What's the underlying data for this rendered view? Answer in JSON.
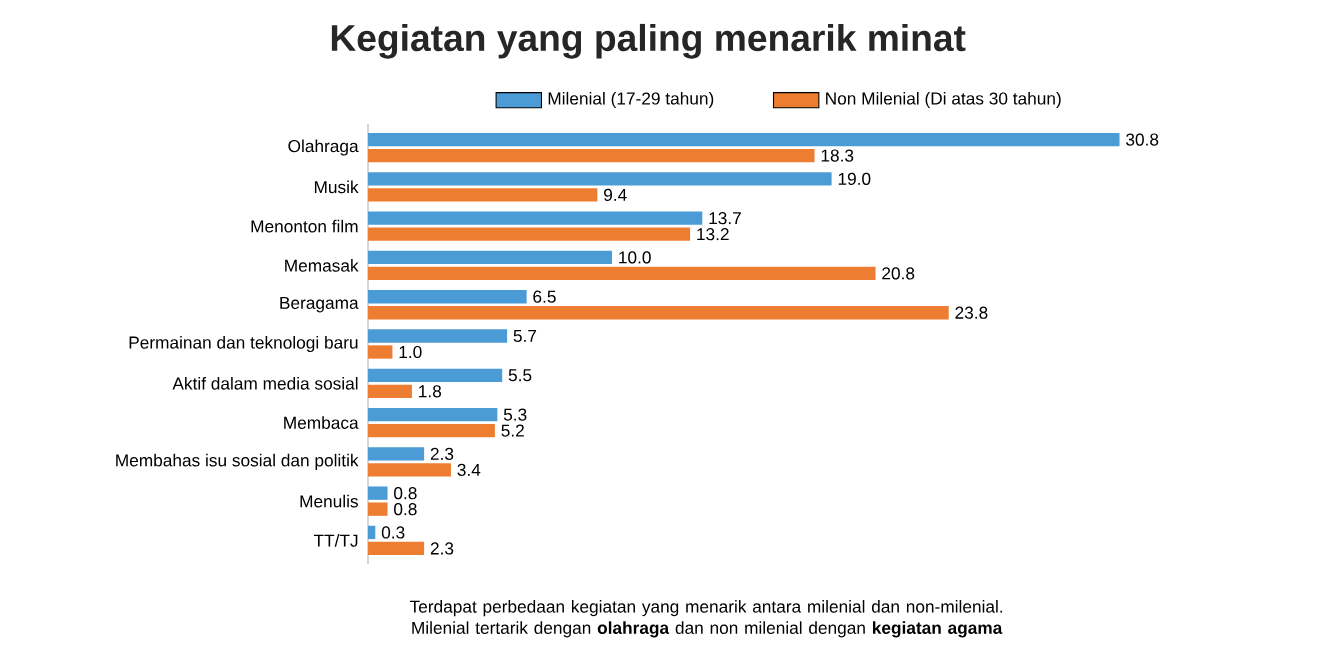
{
  "chart_data": {
    "type": "bar",
    "orientation": "horizontal",
    "title": "Kegiatan yang paling menarik minat",
    "categories": [
      "Olahraga",
      "Musik",
      "Menonton film",
      "Memasak",
      "Beragama",
      "Permainan dan teknologi baru",
      "Aktif dalam media sosial",
      "Membaca",
      "Membahas isu sosial dan politik",
      "Menulis",
      "TT/TJ"
    ],
    "series": [
      {
        "name": "Milenial (17-29 tahun)",
        "color": "#4a9bd6",
        "values": [
          30.8,
          19.0,
          13.7,
          10.0,
          6.5,
          5.7,
          5.5,
          5.3,
          2.3,
          0.8,
          0.3
        ],
        "value_labels": [
          "30.8",
          "19.0",
          "13.7",
          "10.0",
          "6.5",
          "5.7",
          "5.5",
          "5.3",
          "2.3",
          "0.8",
          "0.3"
        ]
      },
      {
        "name": "Non Milenial (Di atas 30 tahun)",
        "color": "#ed7d31",
        "values": [
          18.3,
          9.4,
          13.2,
          20.8,
          23.8,
          1.0,
          1.8,
          5.2,
          3.4,
          0.8,
          2.3
        ],
        "value_labels": [
          "18.3",
          "9.4",
          "13.2",
          "20.8",
          "23.8",
          "1.0",
          "1.8",
          "5.2",
          "3.4",
          "0.8",
          "2.3"
        ]
      }
    ],
    "legend": "top",
    "annotations": [
      "Terdapat perbedaan kegiatan yang menarik antara milenial dan non-milenial. Milenial tertarik dengan **olahraga** dan non milenial dengan **kegiatan agama**"
    ]
  }
}
